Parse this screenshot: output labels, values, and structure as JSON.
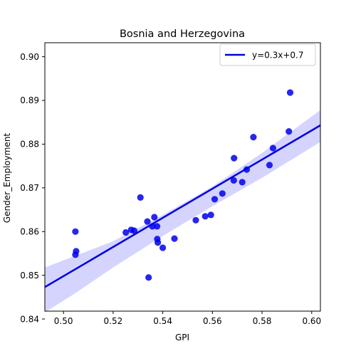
{
  "chart_data": {
    "type": "scatter",
    "title": "Bosnia and Herzegovina",
    "xlabel": "GPI",
    "ylabel": "Gender_Employment",
    "xlim": [
      0.4925,
      0.6035
    ],
    "ylim": [
      0.8418,
      0.9032
    ],
    "xticks": [
      0.5,
      0.52,
      0.54,
      0.56,
      0.58,
      0.6
    ],
    "xtick_labels": [
      "0.50",
      "0.52",
      "0.54",
      "0.56",
      "0.58",
      "0.60"
    ],
    "yticks": [
      0.84,
      0.85,
      0.86,
      0.87,
      0.88,
      0.89,
      0.9
    ],
    "ytick_labels": [
      "0.84",
      "0.85",
      "0.86",
      "0.87",
      "0.88",
      "0.89",
      "0.90"
    ],
    "grid": false,
    "legend_position": "top-right",
    "points": [
      {
        "x": 0.5048,
        "y": 0.86
      },
      {
        "x": 0.5048,
        "y": 0.8547
      },
      {
        "x": 0.5051,
        "y": 0.8555
      },
      {
        "x": 0.5251,
        "y": 0.8598
      },
      {
        "x": 0.5273,
        "y": 0.8604
      },
      {
        "x": 0.5285,
        "y": 0.8602
      },
      {
        "x": 0.531,
        "y": 0.8678
      },
      {
        "x": 0.5338,
        "y": 0.8623
      },
      {
        "x": 0.5343,
        "y": 0.8495
      },
      {
        "x": 0.5358,
        "y": 0.8612
      },
      {
        "x": 0.5366,
        "y": 0.8633
      },
      {
        "x": 0.5377,
        "y": 0.8612
      },
      {
        "x": 0.5378,
        "y": 0.8583
      },
      {
        "x": 0.538,
        "y": 0.8575
      },
      {
        "x": 0.54,
        "y": 0.8563
      },
      {
        "x": 0.5447,
        "y": 0.8584
      },
      {
        "x": 0.5533,
        "y": 0.8626
      },
      {
        "x": 0.5571,
        "y": 0.8635
      },
      {
        "x": 0.5594,
        "y": 0.8638
      },
      {
        "x": 0.5609,
        "y": 0.8674
      },
      {
        "x": 0.564,
        "y": 0.8687
      },
      {
        "x": 0.5686,
        "y": 0.8717
      },
      {
        "x": 0.5687,
        "y": 0.8768
      },
      {
        "x": 0.572,
        "y": 0.8713
      },
      {
        "x": 0.5738,
        "y": 0.8742
      },
      {
        "x": 0.5765,
        "y": 0.8816
      },
      {
        "x": 0.583,
        "y": 0.8752
      },
      {
        "x": 0.5844,
        "y": 0.8791
      },
      {
        "x": 0.5908,
        "y": 0.8829
      },
      {
        "x": 0.5913,
        "y": 0.8918
      }
    ],
    "regression": {
      "label": "y=0.3x+0.7",
      "line": [
        {
          "x": 0.4925,
          "y": 0.8473
        },
        {
          "x": 0.6035,
          "y": 0.8843
        }
      ],
      "band_upper": [
        {
          "x": 0.4925,
          "y": 0.8518
        },
        {
          "x": 0.505,
          "y": 0.8545
        },
        {
          "x": 0.52,
          "y": 0.8578
        },
        {
          "x": 0.54,
          "y": 0.8638
        },
        {
          "x": 0.56,
          "y": 0.8703
        },
        {
          "x": 0.58,
          "y": 0.878
        },
        {
          "x": 0.6035,
          "y": 0.8878
        }
      ],
      "band_lower": [
        {
          "x": 0.4925,
          "y": 0.8415
        },
        {
          "x": 0.505,
          "y": 0.846
        },
        {
          "x": 0.52,
          "y": 0.8518
        },
        {
          "x": 0.54,
          "y": 0.859
        },
        {
          "x": 0.56,
          "y": 0.8658
        },
        {
          "x": 0.58,
          "y": 0.8723
        },
        {
          "x": 0.6035,
          "y": 0.8805
        }
      ]
    },
    "colors": {
      "points": "#0000ee",
      "line": "#0000e0",
      "band": "#d4d4ff",
      "axis": "#000000"
    }
  }
}
